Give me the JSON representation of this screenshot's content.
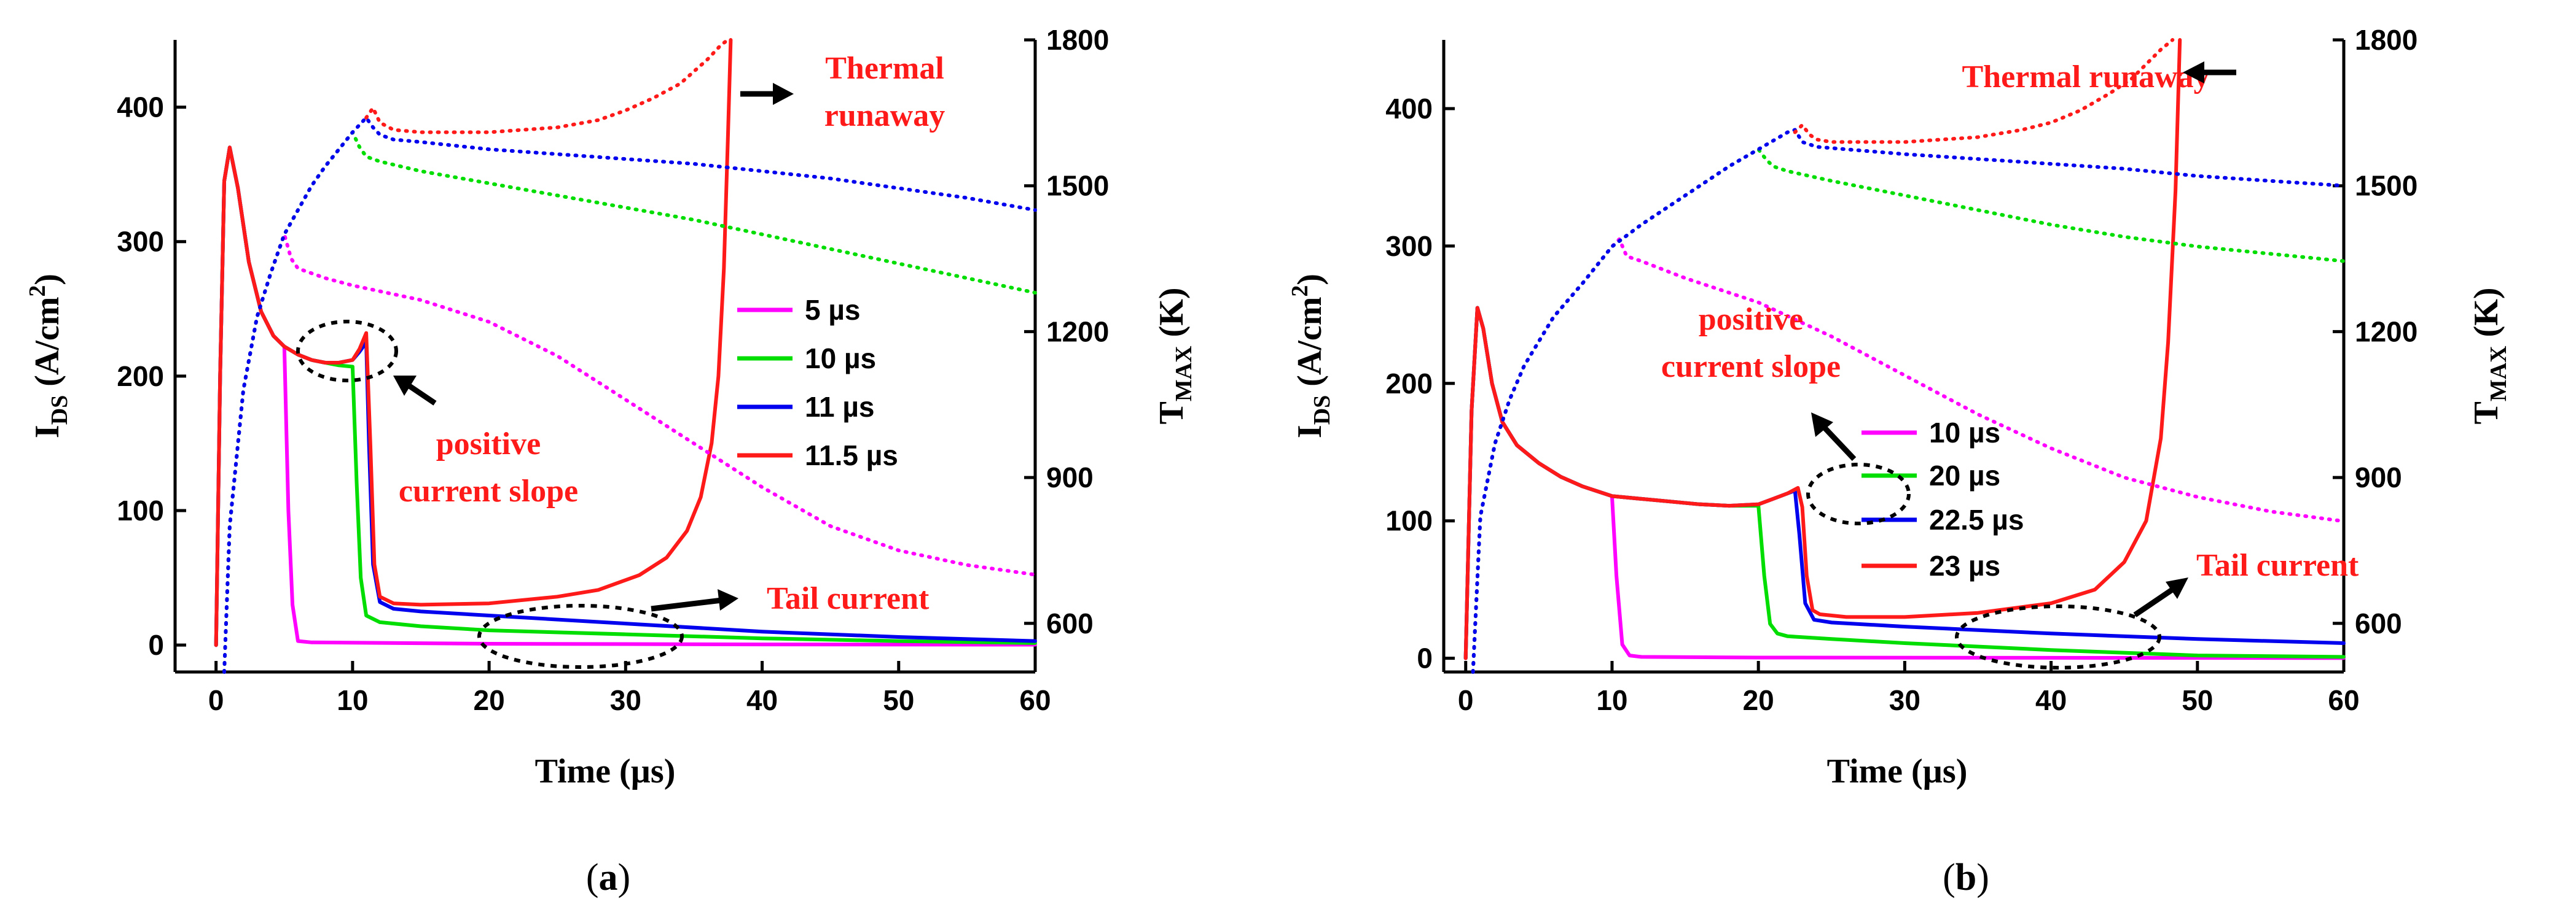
{
  "chart_data": [
    {
      "type": "line",
      "panel": "(a)",
      "panel_letter": "a",
      "xlabel": "Time (µs)",
      "ylabel": "I",
      "ylabel_sub": "DS",
      "ylabel_unit": " (A/cm",
      "ylabel_sup": "2",
      "ylabel_close": ")",
      "y2label": "T",
      "y2label_sub": "MAX",
      "y2label_unit": " (K)",
      "xlim": [
        -3,
        60
      ],
      "ylim": [
        -20,
        450
      ],
      "y2lim": [
        500,
        1800
      ],
      "xticks": [
        0,
        10,
        20,
        30,
        40,
        50,
        60
      ],
      "yticks": [
        0,
        100,
        200,
        300,
        400
      ],
      "y2ticks": [
        600,
        900,
        1200,
        1500,
        1800
      ],
      "xtick_labels": [
        "0",
        "10",
        "20",
        "30",
        "40",
        "50",
        "60"
      ],
      "ytick_labels": [
        "0",
        "100",
        "200",
        "300",
        "400"
      ],
      "y2tick_labels": [
        "600",
        "900",
        "1200",
        "1500",
        "1800"
      ],
      "legend": [
        "5 µs",
        "10 µs",
        "11 µs",
        "11.5 µs"
      ],
      "annotations": [
        "Thermal",
        "runaway",
        "positive",
        "current slope",
        "Tail current"
      ],
      "series": [
        {
          "name": "5 µs",
          "color": "#ff00ff",
          "axis": "left",
          "style": "solid",
          "x": [
            0,
            0.3,
            0.6,
            1,
            1.6,
            2.4,
            3.3,
            4.2,
            5,
            5.3,
            5.6,
            6,
            7,
            20,
            40,
            60
          ],
          "y": [
            0,
            200,
            345,
            370,
            340,
            285,
            248,
            230,
            222,
            100,
            30,
            3,
            2,
            1,
            0.5,
            0.3
          ]
        },
        {
          "name": "10 µs",
          "color": "#00dd00",
          "axis": "left",
          "style": "solid",
          "x": [
            0,
            0.3,
            0.6,
            1,
            1.6,
            2.4,
            3.3,
            4.2,
            5,
            6,
            7,
            8,
            9,
            10,
            10.3,
            10.6,
            11,
            12,
            15,
            20,
            30,
            40,
            50,
            60
          ],
          "y": [
            0,
            200,
            345,
            370,
            340,
            285,
            248,
            230,
            222,
            216,
            212,
            210,
            208,
            207,
            120,
            50,
            22,
            17,
            14,
            11,
            8,
            5,
            3,
            1.5
          ]
        },
        {
          "name": "11 µs",
          "color": "#0000ee",
          "axis": "left",
          "style": "solid",
          "x": [
            0,
            0.3,
            0.6,
            1,
            1.6,
            2.4,
            3.3,
            4.2,
            5,
            6,
            7,
            8,
            9,
            10,
            10.5,
            11,
            11.2,
            11.5,
            12,
            13,
            15,
            20,
            30,
            40,
            50,
            60
          ],
          "y": [
            0,
            200,
            345,
            370,
            340,
            285,
            248,
            230,
            222,
            216,
            212,
            210,
            210,
            212,
            218,
            225,
            150,
            60,
            32,
            27,
            25,
            22,
            16,
            10,
            6,
            3
          ]
        },
        {
          "name": "11.5 µs",
          "color": "#ff1a1a",
          "axis": "left",
          "style": "solid",
          "x": [
            0,
            0.3,
            0.6,
            1,
            1.6,
            2.4,
            3.3,
            4.2,
            5,
            6,
            7,
            8,
            9,
            10,
            10.5,
            11,
            11.3,
            11.6,
            12,
            13,
            15,
            20,
            25,
            28,
            31,
            33,
            34.5,
            35.5,
            36.3,
            36.8,
            37.2,
            37.5,
            37.7
          ],
          "y": [
            0,
            200,
            345,
            370,
            340,
            285,
            248,
            230,
            222,
            216,
            212,
            210,
            210,
            212,
            220,
            232,
            150,
            60,
            36,
            31,
            30,
            31,
            36,
            41,
            52,
            65,
            85,
            110,
            150,
            200,
            280,
            380,
            450
          ]
        },
        {
          "name": "T 5 µs",
          "color": "#ff00ff",
          "axis": "right",
          "style": "dotted",
          "x": [
            0.6,
            1,
            2,
            3,
            4,
            5,
            5.5,
            6,
            8,
            10,
            15,
            20,
            25,
            30,
            35,
            40,
            45,
            50,
            55,
            60
          ],
          "y": [
            500,
            800,
            1080,
            1230,
            1320,
            1400,
            1350,
            1330,
            1310,
            1295,
            1265,
            1220,
            1150,
            1060,
            970,
            880,
            800,
            750,
            720,
            700
          ]
        },
        {
          "name": "T 10 µs",
          "color": "#00dd00",
          "axis": "right",
          "style": "dotted",
          "x": [
            0.6,
            1,
            2,
            3,
            4,
            5,
            6,
            7,
            8,
            9,
            10,
            10.5,
            11,
            12,
            15,
            20,
            25,
            30,
            35,
            40,
            45,
            50,
            55,
            60
          ],
          "y": [
            500,
            800,
            1080,
            1230,
            1320,
            1400,
            1450,
            1500,
            1540,
            1575,
            1610,
            1580,
            1560,
            1550,
            1530,
            1505,
            1480,
            1455,
            1430,
            1400,
            1370,
            1340,
            1310,
            1280
          ]
        },
        {
          "name": "T 11 µs",
          "color": "#0000ee",
          "axis": "right",
          "style": "dotted",
          "x": [
            0.6,
            1,
            2,
            3,
            4,
            5,
            6,
            7,
            8,
            9,
            10,
            11,
            11.5,
            12,
            13,
            15,
            20,
            25,
            30,
            35,
            40,
            45,
            50,
            55,
            60
          ],
          "y": [
            500,
            800,
            1080,
            1230,
            1320,
            1400,
            1450,
            1500,
            1540,
            1575,
            1610,
            1640,
            1620,
            1605,
            1595,
            1590,
            1575,
            1565,
            1555,
            1545,
            1530,
            1515,
            1495,
            1475,
            1450
          ]
        },
        {
          "name": "T 11.5 µs",
          "color": "#ff1a1a",
          "axis": "right",
          "style": "dotted",
          "x": [
            11,
            11.5,
            12,
            13,
            15,
            20,
            25,
            28,
            30,
            32,
            34,
            35,
            36,
            36.5,
            37,
            37.5
          ],
          "y": [
            1640,
            1660,
            1630,
            1615,
            1610,
            1610,
            1620,
            1635,
            1655,
            1680,
            1710,
            1735,
            1760,
            1775,
            1790,
            1800
          ]
        }
      ]
    },
    {
      "type": "line",
      "panel": "(b)",
      "panel_letter": "b",
      "xlabel": "Time (µs)",
      "ylabel": "I",
      "ylabel_sub": "DS",
      "ylabel_unit": " (A/cm",
      "ylabel_sup": "2",
      "ylabel_close": ")",
      "y2label": "T",
      "y2label_sub": "MAX",
      "y2label_unit": " (K)",
      "xlim": [
        -1.5,
        60
      ],
      "ylim": [
        -10,
        450
      ],
      "y2lim": [
        500,
        1800
      ],
      "xticks": [
        0,
        10,
        20,
        30,
        40,
        50,
        60
      ],
      "yticks": [
        0,
        100,
        200,
        300,
        400
      ],
      "y2ticks": [
        600,
        900,
        1200,
        1500,
        1800
      ],
      "xtick_labels": [
        "0",
        "10",
        "20",
        "30",
        "40",
        "50",
        "60"
      ],
      "ytick_labels": [
        "0",
        "100",
        "200",
        "300",
        "400"
      ],
      "y2tick_labels": [
        "600",
        "900",
        "1200",
        "1500",
        "1800"
      ],
      "legend": [
        "10 µs",
        "20 µs",
        "22.5 µs",
        "23 µs"
      ],
      "annotations": [
        "Thermal runaway",
        "positive",
        "current slope",
        "Tail current"
      ],
      "series": [
        {
          "name": "10 µs",
          "color": "#ff00ff",
          "axis": "left",
          "style": "solid",
          "x": [
            0,
            0.4,
            0.8,
            1.2,
            1.8,
            2.5,
            3.5,
            5,
            6.5,
            8,
            10,
            10.3,
            10.7,
            11.2,
            12,
            20,
            40,
            60
          ],
          "y": [
            0,
            180,
            255,
            240,
            200,
            172,
            155,
            142,
            132,
            125,
            118,
            60,
            10,
            2,
            1,
            0.5,
            0.3,
            0.2
          ]
        },
        {
          "name": "20 µs",
          "color": "#00dd00",
          "axis": "left",
          "style": "solid",
          "x": [
            0,
            0.4,
            0.8,
            1.2,
            1.8,
            2.5,
            3.5,
            5,
            6.5,
            8,
            10,
            12,
            14,
            16,
            18,
            20,
            20.4,
            20.8,
            21.3,
            22,
            25,
            30,
            40,
            50,
            60
          ],
          "y": [
            0,
            180,
            255,
            240,
            200,
            172,
            155,
            142,
            132,
            125,
            118,
            116,
            114,
            112,
            111,
            111,
            60,
            25,
            18,
            16,
            14,
            11,
            6,
            2,
            1
          ]
        },
        {
          "name": "22.5 µs",
          "color": "#0000ee",
          "axis": "left",
          "style": "solid",
          "x": [
            0,
            0.4,
            0.8,
            1.2,
            1.8,
            2.5,
            3.5,
            5,
            6.5,
            8,
            10,
            12,
            14,
            16,
            18,
            20,
            21,
            22,
            22.5,
            22.8,
            23.2,
            23.8,
            25,
            30,
            40,
            50,
            60
          ],
          "y": [
            0,
            180,
            255,
            240,
            200,
            172,
            155,
            142,
            132,
            125,
            118,
            116,
            114,
            112,
            111,
            112,
            116,
            120,
            122,
            90,
            40,
            28,
            26,
            23,
            18,
            14,
            11
          ]
        },
        {
          "name": "23 µs",
          "color": "#ff1a1a",
          "axis": "left",
          "style": "solid",
          "x": [
            0,
            0.4,
            0.8,
            1.2,
            1.8,
            2.5,
            3.5,
            5,
            6.5,
            8,
            10,
            12,
            14,
            16,
            18,
            20,
            21,
            22,
            22.7,
            23,
            23.3,
            23.7,
            24.2,
            26,
            30,
            35,
            40,
            43,
            45,
            46.5,
            47.5,
            48,
            48.5,
            48.8
          ],
          "y": [
            0,
            180,
            255,
            240,
            200,
            172,
            155,
            142,
            132,
            125,
            118,
            116,
            114,
            112,
            111,
            112,
            116,
            120,
            124,
            110,
            60,
            35,
            32,
            30,
            30,
            33,
            40,
            50,
            70,
            100,
            160,
            230,
            340,
            450
          ]
        },
        {
          "name": "T 10 µs",
          "color": "#ff00ff",
          "axis": "right",
          "style": "dotted",
          "x": [
            0.5,
            1,
            2,
            3,
            4,
            6,
            8,
            10,
            10.5,
            11,
            12,
            15,
            20,
            25,
            30,
            35,
            40,
            45,
            50,
            55,
            60
          ],
          "y": [
            500,
            820,
            970,
            1060,
            1130,
            1230,
            1300,
            1375,
            1390,
            1355,
            1345,
            1310,
            1260,
            1190,
            1110,
            1030,
            960,
            900,
            860,
            830,
            810
          ]
        },
        {
          "name": "T 20 µs",
          "color": "#00dd00",
          "axis": "right",
          "style": "dotted",
          "x": [
            0.5,
            1,
            2,
            3,
            4,
            6,
            8,
            10,
            12,
            14,
            16,
            18,
            20,
            20.5,
            21,
            22,
            25,
            30,
            35,
            40,
            45,
            50,
            55,
            60
          ],
          "y": [
            500,
            820,
            970,
            1060,
            1130,
            1230,
            1300,
            1375,
            1420,
            1460,
            1500,
            1540,
            1575,
            1555,
            1540,
            1530,
            1510,
            1480,
            1450,
            1420,
            1395,
            1375,
            1360,
            1345
          ]
        },
        {
          "name": "T 22.5 µs",
          "color": "#0000ee",
          "axis": "right",
          "style": "dotted",
          "x": [
            0.5,
            1,
            2,
            3,
            4,
            6,
            8,
            10,
            12,
            14,
            16,
            18,
            20,
            22,
            22.5,
            23,
            24,
            26,
            30,
            35,
            40,
            45,
            50,
            55,
            60
          ],
          "y": [
            500,
            820,
            970,
            1060,
            1130,
            1230,
            1300,
            1375,
            1420,
            1460,
            1500,
            1540,
            1575,
            1610,
            1615,
            1590,
            1580,
            1575,
            1565,
            1555,
            1545,
            1535,
            1520,
            1510,
            1500
          ]
        },
        {
          "name": "T 23 µs",
          "color": "#ff1a1a",
          "axis": "right",
          "style": "dotted",
          "x": [
            22.5,
            23,
            23.5,
            24,
            25,
            30,
            35,
            38,
            40,
            42,
            44,
            45.5,
            46.5,
            47.5,
            48.3
          ],
          "y": [
            1610,
            1625,
            1605,
            1595,
            1590,
            1590,
            1600,
            1615,
            1630,
            1655,
            1690,
            1720,
            1750,
            1780,
            1800
          ]
        }
      ]
    }
  ]
}
